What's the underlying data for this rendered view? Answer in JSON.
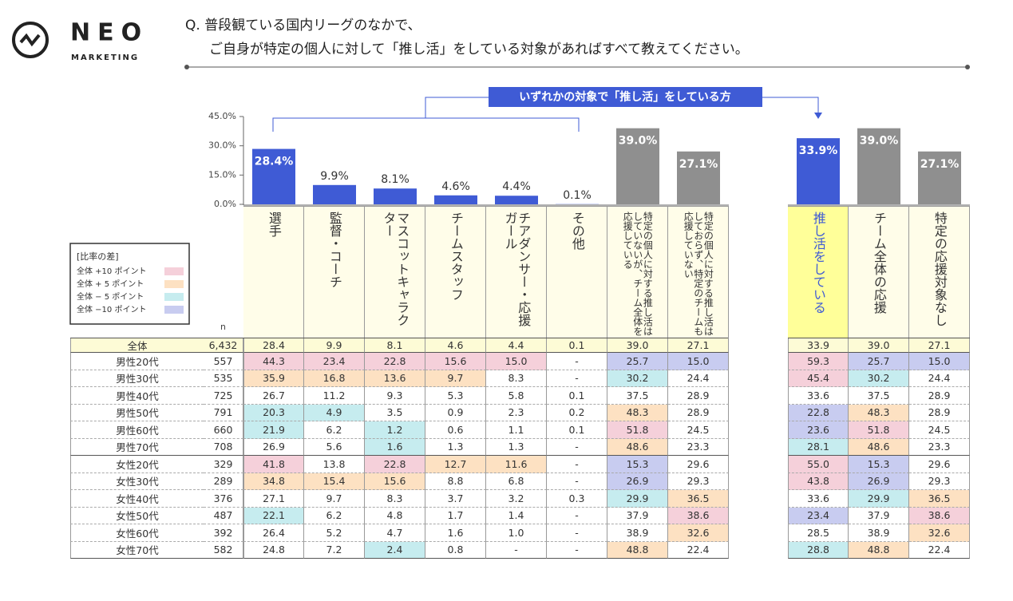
{
  "header": {
    "logo": "NEO",
    "logo_sub": "MARKETING",
    "question_line1": "Q. 普段観ている国内リーグのなかで、",
    "question_line2": "ご自身が特定の個人に対して「推し活」をしている対象があればすべて教えてください。"
  },
  "bracket_label": "いずれかの対象で「推し活」をしている方",
  "chart_data": [
    {
      "type": "bar",
      "categories": [
        "選手",
        "監督・コーチ",
        "マスコットキャラクター",
        "チームスタッフ",
        "チアダンサー・応援ガール",
        "その他",
        "特定の個人に対する推し活はしていないが、チーム全体を応援している",
        "特定の個人に対する推し活はしておらず、特定のチームも応援していない"
      ],
      "values": [
        28.4,
        9.9,
        8.1,
        4.6,
        4.4,
        0.1,
        39.0,
        27.1
      ],
      "value_labels": [
        "28.4%",
        "9.9%",
        "8.1%",
        "4.6%",
        "4.4%",
        "0.1%",
        "39.0%",
        "27.1%"
      ],
      "colors": [
        "#3f5bd5",
        "#3f5bd5",
        "#3f5bd5",
        "#3f5bd5",
        "#3f5bd5",
        "#3f5bd5",
        "#8f8f8f",
        "#8f8f8f"
      ],
      "ylim": [
        0,
        45
      ],
      "yticks": [
        {
          "value": 0,
          "label": "0.0%"
        },
        {
          "value": 15,
          "label": "15.0%"
        },
        {
          "value": 30,
          "label": "30.0%"
        },
        {
          "value": 45,
          "label": "45.0%"
        }
      ]
    },
    {
      "type": "bar",
      "categories": [
        "推し活をしている",
        "チーム全体の応援",
        "特定の応援対象なし"
      ],
      "values": [
        33.9,
        39.0,
        27.1
      ],
      "value_labels": [
        "33.9%",
        "39.0%",
        "27.1%"
      ],
      "colors": [
        "#3f5bd5",
        "#8f8f8f",
        "#8f8f8f"
      ]
    }
  ],
  "legend": {
    "title": "[比率の差]",
    "items": [
      {
        "label": "全体 +10 ポイント",
        "color": "#f5d0da"
      },
      {
        "label": "全体 + 5 ポイント",
        "color": "#fde1c2"
      },
      {
        "label": "全体 − 5 ポイント",
        "color": "#c6ecef"
      },
      {
        "label": "全体 −10 ポイント",
        "color": "#c8ccf0"
      }
    ]
  },
  "table": {
    "n_header": "n",
    "rows": [
      {
        "label": "全体",
        "n": "6,432",
        "row_color": "#fdfbd6",
        "cells": [
          "28.4",
          "9.9",
          "8.1",
          "4.6",
          "4.4",
          "0.1",
          "39.0",
          "27.1"
        ],
        "cells2": [
          "33.9",
          "39.0",
          "27.1"
        ],
        "colors": [
          null,
          null,
          null,
          null,
          null,
          null,
          null,
          null
        ],
        "colors2": [
          null,
          null,
          null
        ]
      },
      {
        "label": "男性20代",
        "n": "557",
        "cells": [
          "44.3",
          "23.4",
          "22.8",
          "15.6",
          "15.0",
          "-",
          "25.7",
          "15.0"
        ],
        "cells2": [
          "59.3",
          "25.7",
          "15.0"
        ],
        "colors": [
          "#f5d0da",
          "#f5d0da",
          "#f5d0da",
          "#f5d0da",
          "#f5d0da",
          null,
          "#c8ccf0",
          "#c8ccf0"
        ],
        "colors2": [
          "#f5d0da",
          "#c8ccf0",
          "#c8ccf0"
        ]
      },
      {
        "label": "男性30代",
        "n": "535",
        "cells": [
          "35.9",
          "16.8",
          "13.6",
          "9.7",
          "8.3",
          "-",
          "30.2",
          "24.4"
        ],
        "cells2": [
          "45.4",
          "30.2",
          "24.4"
        ],
        "colors": [
          "#fde1c2",
          "#fde1c2",
          "#fde1c2",
          "#fde1c2",
          null,
          null,
          "#c6ecef",
          null
        ],
        "colors2": [
          "#f5d0da",
          "#c6ecef",
          null
        ]
      },
      {
        "label": "男性40代",
        "n": "725",
        "cells": [
          "26.7",
          "11.2",
          "9.3",
          "5.3",
          "5.8",
          "0.1",
          "37.5",
          "28.9"
        ],
        "cells2": [
          "33.6",
          "37.5",
          "28.9"
        ],
        "colors": [
          null,
          null,
          null,
          null,
          null,
          null,
          null,
          null
        ],
        "colors2": [
          null,
          null,
          null
        ]
      },
      {
        "label": "男性50代",
        "n": "791",
        "cells": [
          "20.3",
          "4.9",
          "3.5",
          "0.9",
          "2.3",
          "0.2",
          "48.3",
          "28.9"
        ],
        "cells2": [
          "22.8",
          "48.3",
          "28.9"
        ],
        "colors": [
          "#c6ecef",
          "#c6ecef",
          null,
          null,
          null,
          null,
          "#fde1c2",
          null
        ],
        "colors2": [
          "#c8ccf0",
          "#fde1c2",
          null
        ]
      },
      {
        "label": "男性60代",
        "n": "660",
        "cells": [
          "21.9",
          "6.2",
          "1.2",
          "0.6",
          "1.1",
          "0.1",
          "51.8",
          "24.5"
        ],
        "cells2": [
          "23.6",
          "51.8",
          "24.5"
        ],
        "colors": [
          "#c6ecef",
          null,
          "#c6ecef",
          null,
          null,
          null,
          "#f5d0da",
          null
        ],
        "colors2": [
          "#c8ccf0",
          "#f5d0da",
          null
        ]
      },
      {
        "label": "男性70代",
        "n": "708",
        "cells": [
          "26.9",
          "5.6",
          "1.6",
          "1.3",
          "1.3",
          "-",
          "48.6",
          "23.3"
        ],
        "cells2": [
          "28.1",
          "48.6",
          "23.3"
        ],
        "colors": [
          null,
          null,
          "#c6ecef",
          null,
          null,
          null,
          "#fde1c2",
          null
        ],
        "colors2": [
          "#c6ecef",
          "#fde1c2",
          null
        ]
      },
      {
        "label": "女性20代",
        "n": "329",
        "cells": [
          "41.8",
          "13.8",
          "22.8",
          "12.7",
          "11.6",
          "-",
          "15.3",
          "29.6"
        ],
        "cells2": [
          "55.0",
          "15.3",
          "29.6"
        ],
        "colors": [
          "#f5d0da",
          null,
          "#f5d0da",
          "#fde1c2",
          "#fde1c2",
          null,
          "#c8ccf0",
          null
        ],
        "colors2": [
          "#f5d0da",
          "#c8ccf0",
          null
        ]
      },
      {
        "label": "女性30代",
        "n": "289",
        "cells": [
          "34.8",
          "15.4",
          "15.6",
          "8.8",
          "6.8",
          "-",
          "26.9",
          "29.3"
        ],
        "cells2": [
          "43.8",
          "26.9",
          "29.3"
        ],
        "colors": [
          "#fde1c2",
          "#fde1c2",
          "#fde1c2",
          null,
          null,
          null,
          "#c8ccf0",
          null
        ],
        "colors2": [
          "#f5d0da",
          "#c8ccf0",
          null
        ]
      },
      {
        "label": "女性40代",
        "n": "376",
        "cells": [
          "27.1",
          "9.7",
          "8.3",
          "3.7",
          "3.2",
          "0.3",
          "29.9",
          "36.5"
        ],
        "cells2": [
          "33.6",
          "29.9",
          "36.5"
        ],
        "colors": [
          null,
          null,
          null,
          null,
          null,
          null,
          "#c6ecef",
          "#fde1c2"
        ],
        "colors2": [
          null,
          "#c6ecef",
          "#fde1c2"
        ]
      },
      {
        "label": "女性50代",
        "n": "487",
        "cells": [
          "22.1",
          "6.2",
          "4.8",
          "1.7",
          "1.4",
          "-",
          "37.9",
          "38.6"
        ],
        "cells2": [
          "23.4",
          "37.9",
          "38.6"
        ],
        "colors": [
          "#c6ecef",
          null,
          null,
          null,
          null,
          null,
          null,
          "#f5d0da"
        ],
        "colors2": [
          "#c8ccf0",
          null,
          "#f5d0da"
        ]
      },
      {
        "label": "女性60代",
        "n": "392",
        "cells": [
          "26.4",
          "5.2",
          "4.7",
          "1.6",
          "1.0",
          "-",
          "38.9",
          "32.6"
        ],
        "cells2": [
          "28.5",
          "38.9",
          "32.6"
        ],
        "colors": [
          null,
          null,
          null,
          null,
          null,
          null,
          null,
          "#fde1c2"
        ],
        "colors2": [
          null,
          null,
          "#fde1c2"
        ]
      },
      {
        "label": "女性70代",
        "n": "582",
        "cells": [
          "24.8",
          "7.2",
          "2.4",
          "0.8",
          "-",
          "-",
          "48.8",
          "22.4"
        ],
        "cells2": [
          "28.8",
          "48.8",
          "22.4"
        ],
        "colors": [
          null,
          null,
          "#c6ecef",
          null,
          null,
          null,
          "#fde1c2",
          null
        ],
        "colors2": [
          "#c6ecef",
          "#fde1c2",
          null
        ]
      }
    ]
  }
}
